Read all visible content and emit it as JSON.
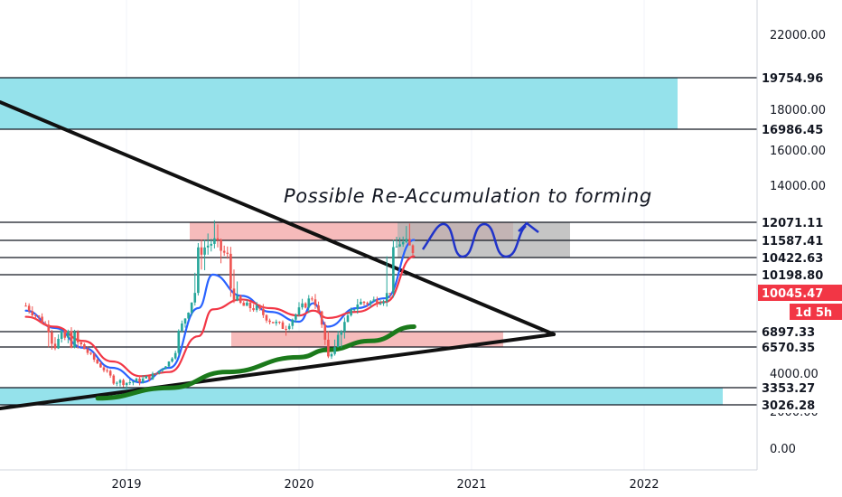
{
  "chart_data": {
    "type": "line",
    "title": "",
    "xlabel": "",
    "ylabel": "",
    "x_ticks": [
      "2019",
      "2020",
      "2021",
      "2022"
    ],
    "y_ticks": [
      "22000.00",
      "18000.00",
      "16000.00",
      "14000.00",
      "4000.00",
      "2000.00",
      "0.00"
    ],
    "price_labels": [
      {
        "value": "19754.96",
        "style": "line"
      },
      {
        "value": "16986.45",
        "style": "line"
      },
      {
        "value": "12071.11",
        "style": "line"
      },
      {
        "value": "11587.41",
        "style": "line"
      },
      {
        "value": "10422.63",
        "style": "line"
      },
      {
        "value": "10198.80",
        "style": "line"
      },
      {
        "value": "10045.47",
        "style": "current",
        "color": "#f23645"
      },
      {
        "value": "6897.33",
        "style": "line"
      },
      {
        "value": "6570.35",
        "style": "line"
      },
      {
        "value": "3353.27",
        "style": "line"
      },
      {
        "value": "3026.28",
        "style": "line"
      }
    ],
    "countdown_label": "1d 5h",
    "annotation": "Possible Re-Accumulation to forming",
    "zones": [
      {
        "name": "resistance",
        "from": 16986.45,
        "to": 19754.96,
        "color": "#8fe0ea"
      },
      {
        "name": "range-top",
        "from": 11587.41,
        "to": 12071.11,
        "color": "#f5b7b7"
      },
      {
        "name": "range-bottom",
        "from": 6570.35,
        "to": 6897.33,
        "color": "#f5b7b7"
      },
      {
        "name": "support",
        "from": 3026.28,
        "to": 3353.27,
        "color": "#8fe0ea"
      },
      {
        "name": "projection",
        "from": 10422.63,
        "to": 12071.11,
        "color": "#b2b2b2"
      }
    ],
    "price_path": [
      [
        "2018-06",
        9000
      ],
      [
        "2018-07",
        7900
      ],
      [
        "2018-08",
        6600
      ],
      [
        "2018-09",
        6800
      ],
      [
        "2018-10",
        6500
      ],
      [
        "2018-11",
        5000
      ],
      [
        "2018-12",
        3700
      ],
      [
        "2019-01",
        3600
      ],
      [
        "2019-02",
        3700
      ],
      [
        "2019-03",
        4000
      ],
      [
        "2019-04",
        5200
      ],
      [
        "2019-05",
        7800
      ],
      [
        "2019-06",
        10800
      ],
      [
        "2019-07",
        11500
      ],
      [
        "2019-08",
        10500
      ],
      [
        "2019-09",
        9000
      ],
      [
        "2019-10",
        8800
      ],
      [
        "2019-11",
        7800
      ],
      [
        "2019-12",
        7200
      ],
      [
        "2020-01",
        8600
      ],
      [
        "2020-02",
        9800
      ],
      [
        "2020-03",
        5700
      ],
      [
        "2020-04",
        7200
      ],
      [
        "2020-05",
        9200
      ],
      [
        "2020-06",
        9300
      ],
      [
        "2020-07",
        9700
      ],
      [
        "2020-08",
        11500
      ],
      [
        "2020-09",
        10900
      ]
    ],
    "moving_averages": [
      {
        "color": "#2962ff",
        "values": [
          [
            "2018-06",
            8600
          ],
          [
            "2018-08",
            7200
          ],
          [
            "2018-10",
            6500
          ],
          [
            "2018-12",
            4600
          ],
          [
            "2019-02",
            3600
          ],
          [
            "2019-04",
            4600
          ],
          [
            "2019-06",
            8800
          ],
          [
            "2019-07",
            10200
          ],
          [
            "2019-09",
            9800
          ],
          [
            "2019-11",
            8500
          ],
          [
            "2020-01",
            7700
          ],
          [
            "2020-02",
            9200
          ],
          [
            "2020-03",
            7300
          ],
          [
            "2020-05",
            8800
          ],
          [
            "2020-07",
            9600
          ],
          [
            "2020-09",
            11600
          ]
        ]
      },
      {
        "color": "#f23645",
        "values": [
          [
            "2018-06",
            8100
          ],
          [
            "2018-08",
            7300
          ],
          [
            "2018-10",
            6700
          ],
          [
            "2018-12",
            5200
          ],
          [
            "2019-02",
            3900
          ],
          [
            "2019-04",
            4200
          ],
          [
            "2019-06",
            6800
          ],
          [
            "2019-07",
            8700
          ],
          [
            "2019-09",
            9500
          ],
          [
            "2019-11",
            8800
          ],
          [
            "2020-01",
            8200
          ],
          [
            "2020-02",
            8600
          ],
          [
            "2020-03",
            8000
          ],
          [
            "2020-05",
            8500
          ],
          [
            "2020-07",
            9300
          ],
          [
            "2020-09",
            10500
          ]
        ]
      },
      {
        "color": "#1b7a1b",
        "values": [
          [
            "2018-11",
            3150
          ],
          [
            "2019-04",
            3350
          ],
          [
            "2019-08",
            4200
          ],
          [
            "2020-01",
            5600
          ],
          [
            "2020-03",
            6300
          ],
          [
            "2020-06",
            6700
          ],
          [
            "2020-09",
            7300
          ]
        ]
      }
    ],
    "trendlines": [
      {
        "name": "descending",
        "from": [
          "2018-06",
          18700
        ],
        "to": [
          "2021-06",
          7000
        ]
      },
      {
        "name": "ascending",
        "from": [
          "2018-06",
          2700
        ],
        "to": [
          "2021-06",
          7000
        ]
      }
    ]
  }
}
